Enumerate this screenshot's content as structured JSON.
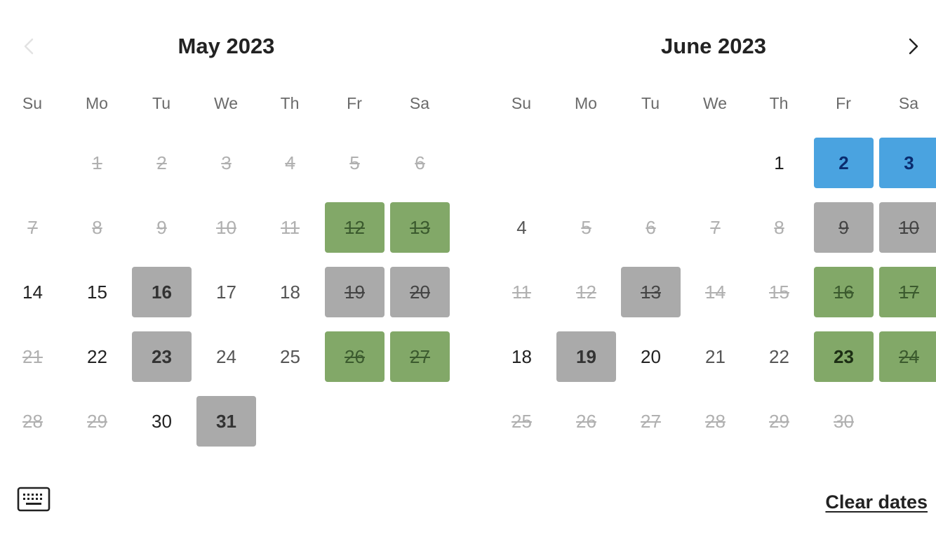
{
  "months": [
    {
      "title": "May 2023",
      "weekdays": [
        "Su",
        "Mo",
        "Tu",
        "We",
        "Th",
        "Fr",
        "Sa"
      ],
      "days": [
        {
          "label": "1",
          "state": "unavailable"
        },
        {
          "label": "2",
          "state": "unavailable"
        },
        {
          "label": "3",
          "state": "unavailable"
        },
        {
          "label": "4",
          "state": "unavailable"
        },
        {
          "label": "5",
          "state": "unavailable"
        },
        {
          "label": "6",
          "state": "unavailable"
        },
        {
          "label": "7",
          "state": "unavailable"
        },
        {
          "label": "8",
          "state": "unavailable"
        },
        {
          "label": "9",
          "state": "unavailable"
        },
        {
          "label": "10",
          "state": "unavailable"
        },
        {
          "label": "11",
          "state": "unavailable"
        },
        {
          "label": "12",
          "state": "unavailable",
          "highlight": "green"
        },
        {
          "label": "13",
          "state": "unavailable",
          "highlight": "green"
        },
        {
          "label": "14",
          "state": "available"
        },
        {
          "label": "15",
          "state": "available"
        },
        {
          "label": "16",
          "state": "available",
          "highlight": "gray"
        },
        {
          "label": "17",
          "state": "available",
          "muted": true
        },
        {
          "label": "18",
          "state": "available",
          "muted": true
        },
        {
          "label": "19",
          "state": "unavailable",
          "highlight": "gray"
        },
        {
          "label": "20",
          "state": "unavailable",
          "highlight": "gray"
        },
        {
          "label": "21",
          "state": "unavailable"
        },
        {
          "label": "22",
          "state": "available"
        },
        {
          "label": "23",
          "state": "available",
          "highlight": "gray"
        },
        {
          "label": "24",
          "state": "available",
          "muted": true
        },
        {
          "label": "25",
          "state": "available",
          "muted": true
        },
        {
          "label": "26",
          "state": "unavailable",
          "highlight": "green"
        },
        {
          "label": "27",
          "state": "unavailable",
          "highlight": "green"
        },
        {
          "label": "28",
          "state": "unavailable"
        },
        {
          "label": "29",
          "state": "unavailable"
        },
        {
          "label": "30",
          "state": "available"
        },
        {
          "label": "31",
          "state": "available",
          "highlight": "gray"
        }
      ]
    },
    {
      "title": "June 2023",
      "weekdays": [
        "Su",
        "Mo",
        "Tu",
        "We",
        "Th",
        "Fr",
        "Sa"
      ],
      "days": [
        {
          "label": "1",
          "state": "available"
        },
        {
          "label": "2",
          "state": "available",
          "highlight": "blue"
        },
        {
          "label": "3",
          "state": "available",
          "highlight": "blue"
        },
        {
          "label": "4",
          "state": "available",
          "muted": true
        },
        {
          "label": "5",
          "state": "unavailable"
        },
        {
          "label": "6",
          "state": "unavailable"
        },
        {
          "label": "7",
          "state": "unavailable"
        },
        {
          "label": "8",
          "state": "unavailable"
        },
        {
          "label": "9",
          "state": "unavailable",
          "highlight": "gray"
        },
        {
          "label": "10",
          "state": "unavailable",
          "highlight": "gray"
        },
        {
          "label": "11",
          "state": "unavailable"
        },
        {
          "label": "12",
          "state": "unavailable"
        },
        {
          "label": "13",
          "state": "unavailable",
          "highlight": "gray"
        },
        {
          "label": "14",
          "state": "unavailable"
        },
        {
          "label": "15",
          "state": "unavailable"
        },
        {
          "label": "16",
          "state": "unavailable",
          "highlight": "green"
        },
        {
          "label": "17",
          "state": "unavailable",
          "highlight": "green"
        },
        {
          "label": "18",
          "state": "available"
        },
        {
          "label": "19",
          "state": "available",
          "highlight": "gray"
        },
        {
          "label": "20",
          "state": "available"
        },
        {
          "label": "21",
          "state": "available",
          "muted": true
        },
        {
          "label": "22",
          "state": "available",
          "muted": true
        },
        {
          "label": "23",
          "state": "available",
          "highlight": "green"
        },
        {
          "label": "24",
          "state": "unavailable",
          "highlight": "green"
        },
        {
          "label": "25",
          "state": "unavailable"
        },
        {
          "label": "26",
          "state": "unavailable"
        },
        {
          "label": "27",
          "state": "unavailable"
        },
        {
          "label": "28",
          "state": "unavailable"
        },
        {
          "label": "29",
          "state": "unavailable"
        },
        {
          "label": "30",
          "state": "unavailable"
        }
      ]
    }
  ],
  "nav": {
    "prev_icon": "chevron-left-icon",
    "next_icon": "chevron-right-icon",
    "prev_disabled": true
  },
  "footer": {
    "keyboard_icon": "keyboard-icon",
    "clear_label": "Clear dates"
  },
  "colors": {
    "gray_highlight": "#aaaaaa",
    "green_highlight": "#82a868",
    "blue_highlight": "#4aa3e0",
    "unavailable_text": "#b0b0b0"
  }
}
